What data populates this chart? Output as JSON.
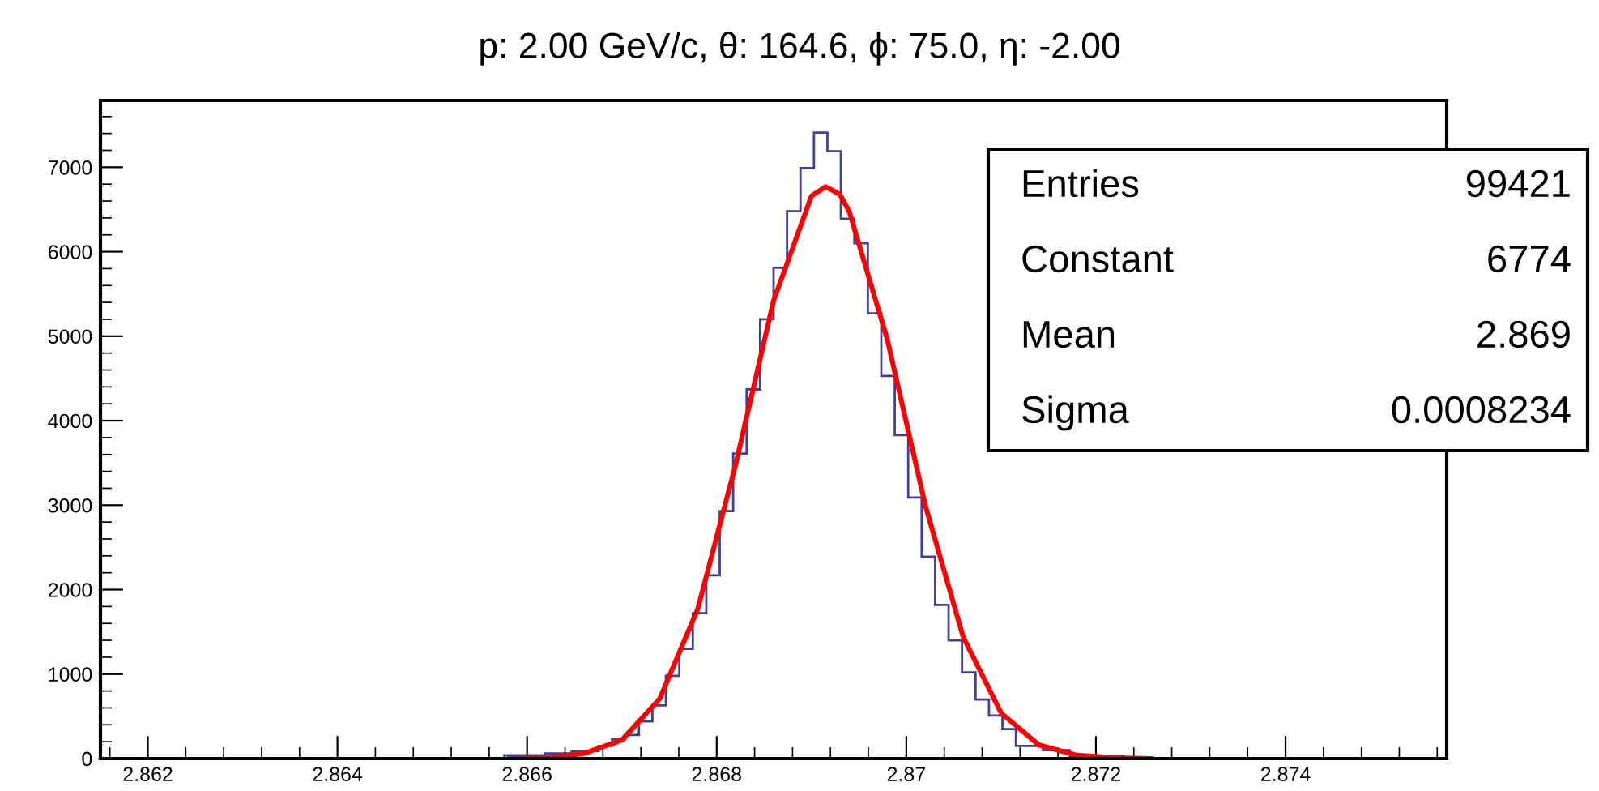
{
  "chart_data": {
    "type": "histogram",
    "title": "p: 2.00 GeV/c, θ: 164.6, ϕ: 75.0, η: -2.00",
    "xlim": [
      2.8615,
      2.8757
    ],
    "xticks": [
      2.862,
      2.864,
      2.866,
      2.868,
      2.87,
      2.872,
      2.874
    ],
    "ylim": [
      0,
      7790
    ],
    "yticks": [
      0,
      1000,
      2000,
      3000,
      4000,
      5000,
      6000,
      7000
    ],
    "grid": false,
    "legend": false,
    "series": [
      {
        "color": "#3f3f9f",
        "bins": [
          2.8615,
          2.86576,
          2.865902,
          2.866044,
          2.866186,
          2.866328,
          2.86647,
          2.866612,
          2.866754,
          2.866896,
          2.867038,
          2.86718,
          2.867322,
          2.867464,
          2.867606,
          2.867748,
          2.86789,
          2.868032,
          2.868174,
          2.868316,
          2.868458,
          2.8686,
          2.868742,
          2.868884,
          2.869026,
          2.869168,
          2.86931,
          2.869452,
          2.869594,
          2.869736,
          2.869878,
          2.87002,
          2.870162,
          2.870304,
          2.870446,
          2.870588,
          2.87073,
          2.870872,
          2.871014,
          2.871156,
          2.871298,
          2.87144,
          2.871582,
          2.871724,
          2.871866,
          2.872008,
          2.87215,
          2.872292,
          2.8757
        ],
        "values": [
          0,
          40,
          40,
          40,
          60,
          60,
          90,
          90,
          150,
          230,
          280,
          440,
          630,
          980,
          1300,
          1720,
          2170,
          2930,
          3610,
          4370,
          5200,
          5810,
          6480,
          6990,
          7410,
          7190,
          6390,
          6100,
          5270,
          4530,
          3830,
          3090,
          2390,
          1820,
          1400,
          1020,
          700,
          510,
          350,
          150,
          150,
          100,
          100,
          30,
          30,
          30,
          30,
          0
        ]
      },
      {
        "type": "line",
        "color": "#ff0000",
        "x": [
          2.8658,
          2.8662,
          2.8666,
          2.867,
          2.8674,
          2.8678,
          2.8682,
          2.8686,
          2.869,
          2.86915,
          2.8693,
          2.8694,
          2.8698,
          2.8702,
          2.8706,
          2.871,
          2.8714,
          2.8718,
          2.8722,
          2.8726
        ],
        "values": [
          0,
          10,
          60,
          220,
          710,
          1770,
          3480,
          5420,
          6660,
          6770,
          6680,
          6470,
          4960,
          3000,
          1440,
          540,
          160,
          40,
          10,
          0
        ]
      }
    ],
    "annotations": [
      "Entries",
      "99421",
      "Constant",
      "6774",
      "Mean",
      "2.869",
      "Sigma",
      "0.0008234"
    ]
  }
}
